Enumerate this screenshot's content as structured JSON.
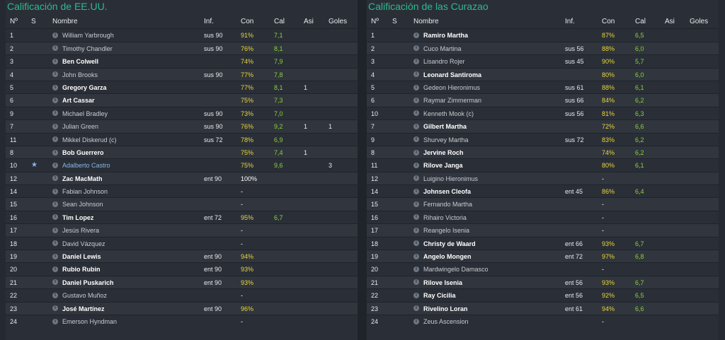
{
  "columns": {
    "num": "Nº",
    "s": "S",
    "name": "Nombre",
    "inf": "Inf.",
    "con": "Con",
    "cal": "Cal",
    "asi": "Asi",
    "goles": "Goles"
  },
  "left": {
    "title": "Calificación de EE.UU.",
    "rows": [
      {
        "num": "1",
        "s": "",
        "name": "William Yarbrough",
        "bold": false,
        "inf": "sus 90",
        "con": "91%",
        "cal": "7,1",
        "asi": "",
        "goles": ""
      },
      {
        "num": "2",
        "s": "",
        "name": "Timothy Chandler",
        "bold": false,
        "inf": "sus 90",
        "con": "76%",
        "cal": "8,1",
        "asi": "",
        "goles": ""
      },
      {
        "num": "3",
        "s": "",
        "name": "Ben Colwell",
        "bold": true,
        "inf": "",
        "con": "74%",
        "cal": "7,9",
        "asi": "",
        "goles": ""
      },
      {
        "num": "4",
        "s": "",
        "name": "John Brooks",
        "bold": false,
        "inf": "sus 90",
        "con": "77%",
        "cal": "7,8",
        "asi": "",
        "goles": ""
      },
      {
        "num": "5",
        "s": "",
        "name": "Gregory Garza",
        "bold": true,
        "inf": "",
        "con": "77%",
        "cal": "8,1",
        "asi": "1",
        "goles": ""
      },
      {
        "num": "6",
        "s": "",
        "name": "Art Cassar",
        "bold": true,
        "inf": "",
        "con": "75%",
        "cal": "7,3",
        "asi": "",
        "goles": ""
      },
      {
        "num": "9",
        "s": "",
        "name": "Michael Bradley",
        "bold": false,
        "inf": "sus 90",
        "con": "73%",
        "cal": "7,0",
        "asi": "",
        "goles": ""
      },
      {
        "num": "7",
        "s": "",
        "name": "Julian Green",
        "bold": false,
        "inf": "sus 90",
        "con": "76%",
        "cal": "9,2",
        "asi": "1",
        "goles": "1"
      },
      {
        "num": "11",
        "s": "",
        "name": "Mikkel Diskerud (c)",
        "bold": false,
        "inf": "sus 72",
        "con": "78%",
        "cal": "6,9",
        "asi": "",
        "goles": ""
      },
      {
        "num": "8",
        "s": "",
        "name": "Bob Guerrero",
        "bold": true,
        "inf": "",
        "con": "75%",
        "cal": "7,4",
        "asi": "1",
        "goles": ""
      },
      {
        "num": "10",
        "s": "★",
        "name": "Adalberto Castro",
        "bold": false,
        "link": true,
        "inf": "",
        "con": "75%",
        "cal": "9,6",
        "asi": "",
        "goles": "3"
      },
      {
        "num": "12",
        "s": "",
        "name": "Zac MacMath",
        "bold": true,
        "inf": "ent 90",
        "con": "100%",
        "cal": "",
        "asi": "",
        "goles": ""
      },
      {
        "num": "14",
        "s": "",
        "name": "Fabian Johnson",
        "bold": false,
        "inf": "",
        "con": "-",
        "cal": "",
        "asi": "",
        "goles": ""
      },
      {
        "num": "15",
        "s": "",
        "name": "Sean Johnson",
        "bold": false,
        "inf": "",
        "con": "-",
        "cal": "",
        "asi": "",
        "goles": ""
      },
      {
        "num": "16",
        "s": "",
        "name": "Tim Lopez",
        "bold": true,
        "inf": "ent 72",
        "con": "95%",
        "cal": "6,7",
        "asi": "",
        "goles": ""
      },
      {
        "num": "17",
        "s": "",
        "name": "Jesús Rivera",
        "bold": false,
        "inf": "",
        "con": "-",
        "cal": "",
        "asi": "",
        "goles": ""
      },
      {
        "num": "18",
        "s": "",
        "name": "David Vázquez",
        "bold": false,
        "inf": "",
        "con": "-",
        "cal": "",
        "asi": "",
        "goles": ""
      },
      {
        "num": "19",
        "s": "",
        "name": "Daniel Lewis",
        "bold": true,
        "inf": "ent 90",
        "con": "94%",
        "cal": "",
        "asi": "",
        "goles": ""
      },
      {
        "num": "20",
        "s": "",
        "name": "Rubio Rubin",
        "bold": true,
        "inf": "ent 90",
        "con": "93%",
        "cal": "",
        "asi": "",
        "goles": ""
      },
      {
        "num": "21",
        "s": "",
        "name": "Daniel Puskarich",
        "bold": true,
        "inf": "ent 90",
        "con": "93%",
        "cal": "",
        "asi": "",
        "goles": ""
      },
      {
        "num": "22",
        "s": "",
        "name": "Gustavo Muñoz",
        "bold": false,
        "inf": "",
        "con": "-",
        "cal": "",
        "asi": "",
        "goles": ""
      },
      {
        "num": "23",
        "s": "",
        "name": "José Martínez",
        "bold": true,
        "inf": "ent 90",
        "con": "96%",
        "cal": "",
        "asi": "",
        "goles": ""
      },
      {
        "num": "24",
        "s": "",
        "name": "Emerson Hyndman",
        "bold": false,
        "inf": "",
        "con": "-",
        "cal": "",
        "asi": "",
        "goles": ""
      }
    ]
  },
  "right": {
    "title": "Calificación de las Curazao",
    "rows": [
      {
        "num": "1",
        "s": "",
        "name": "Ramiro Martha",
        "bold": true,
        "inf": "",
        "con": "87%",
        "cal": "6,5",
        "asi": "",
        "goles": ""
      },
      {
        "num": "2",
        "s": "",
        "name": "Cuco Martina",
        "bold": false,
        "inf": "sus 56",
        "con": "88%",
        "cal": "6,0",
        "asi": "",
        "goles": ""
      },
      {
        "num": "3",
        "s": "",
        "name": "Lisandro Rojer",
        "bold": false,
        "inf": "sus 45",
        "con": "90%",
        "cal": "5,7",
        "asi": "",
        "goles": ""
      },
      {
        "num": "4",
        "s": "",
        "name": "Leonard Santiroma",
        "bold": true,
        "inf": "",
        "con": "80%",
        "cal": "6,0",
        "asi": "",
        "goles": ""
      },
      {
        "num": "5",
        "s": "",
        "name": "Gedeon Hieronimus",
        "bold": false,
        "inf": "sus 61",
        "con": "88%",
        "cal": "6,1",
        "asi": "",
        "goles": ""
      },
      {
        "num": "6",
        "s": "",
        "name": "Raymar Zimmerman",
        "bold": false,
        "inf": "sus 66",
        "con": "84%",
        "cal": "6,2",
        "asi": "",
        "goles": ""
      },
      {
        "num": "10",
        "s": "",
        "name": "Kenneth Mook (c)",
        "bold": false,
        "inf": "sus 56",
        "con": "81%",
        "cal": "6,3",
        "asi": "",
        "goles": ""
      },
      {
        "num": "7",
        "s": "",
        "name": "Gilbert Martha",
        "bold": true,
        "inf": "",
        "con": "72%",
        "cal": "6,6",
        "asi": "",
        "goles": ""
      },
      {
        "num": "9",
        "s": "",
        "name": "Shurvey Martha",
        "bold": false,
        "inf": "sus 72",
        "con": "83%",
        "cal": "6,2",
        "asi": "",
        "goles": ""
      },
      {
        "num": "8",
        "s": "",
        "name": "Jervine Roch",
        "bold": true,
        "inf": "",
        "con": "74%",
        "cal": "6,2",
        "asi": "",
        "goles": ""
      },
      {
        "num": "11",
        "s": "",
        "name": "Rilove Janga",
        "bold": true,
        "inf": "",
        "con": "80%",
        "cal": "6,1",
        "asi": "",
        "goles": ""
      },
      {
        "num": "12",
        "s": "",
        "name": "Luigino Hieronimus",
        "bold": false,
        "inf": "",
        "con": "-",
        "cal": "",
        "asi": "",
        "goles": ""
      },
      {
        "num": "14",
        "s": "",
        "name": "Johnsen Cleofa",
        "bold": true,
        "inf": "ent 45",
        "con": "86%",
        "cal": "6,4",
        "asi": "",
        "goles": ""
      },
      {
        "num": "15",
        "s": "",
        "name": "Fernando Martha",
        "bold": false,
        "inf": "",
        "con": "-",
        "cal": "",
        "asi": "",
        "goles": ""
      },
      {
        "num": "16",
        "s": "",
        "name": "Rihairo Victoria",
        "bold": false,
        "inf": "",
        "con": "-",
        "cal": "",
        "asi": "",
        "goles": ""
      },
      {
        "num": "17",
        "s": "",
        "name": "Reangelo Isenia",
        "bold": false,
        "inf": "",
        "con": "-",
        "cal": "",
        "asi": "",
        "goles": ""
      },
      {
        "num": "18",
        "s": "",
        "name": "Christy de Waard",
        "bold": true,
        "inf": "ent 66",
        "con": "93%",
        "cal": "6,7",
        "asi": "",
        "goles": ""
      },
      {
        "num": "19",
        "s": "",
        "name": "Angelo Mongen",
        "bold": true,
        "inf": "ent 72",
        "con": "97%",
        "cal": "6,8",
        "asi": "",
        "goles": ""
      },
      {
        "num": "20",
        "s": "",
        "name": "Mardwingelo Damasco",
        "bold": false,
        "inf": "",
        "con": "-",
        "cal": "",
        "asi": "",
        "goles": ""
      },
      {
        "num": "21",
        "s": "",
        "name": "Rilove Isenia",
        "bold": true,
        "inf": "ent 56",
        "con": "93%",
        "cal": "6,7",
        "asi": "",
        "goles": ""
      },
      {
        "num": "22",
        "s": "",
        "name": "Ray Cicilia",
        "bold": true,
        "inf": "ent 56",
        "con": "92%",
        "cal": "6,5",
        "asi": "",
        "goles": ""
      },
      {
        "num": "23",
        "s": "",
        "name": "Rivelino Loran",
        "bold": true,
        "inf": "ent 61",
        "con": "94%",
        "cal": "6,6",
        "asi": "",
        "goles": ""
      },
      {
        "num": "24",
        "s": "",
        "name": "Zeus Ascension",
        "bold": false,
        "inf": "",
        "con": "-",
        "cal": "",
        "asi": "",
        "goles": ""
      }
    ]
  },
  "icons": {
    "info": "info-icon",
    "star": "star-icon"
  },
  "colors": {
    "title": "#2fb88f",
    "con": "#e8d63c",
    "cal": "#8bd13a",
    "link": "#8ab6e8"
  }
}
